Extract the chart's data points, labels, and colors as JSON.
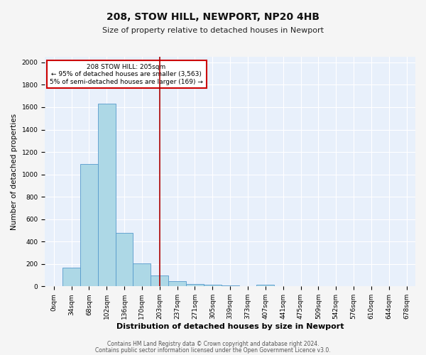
{
  "title_line1": "208, STOW HILL, NEWPORT, NP20 4HB",
  "title_line2": "Size of property relative to detached houses in Newport",
  "xlabel": "Distribution of detached houses by size in Newport",
  "ylabel": "Number of detached properties",
  "footnote1": "Contains HM Land Registry data © Crown copyright and database right 2024.",
  "footnote2": "Contains public sector information licensed under the Open Government Licence v3.0.",
  "bar_labels": [
    "0sqm",
    "34sqm",
    "68sqm",
    "102sqm",
    "136sqm",
    "170sqm",
    "203sqm",
    "237sqm",
    "271sqm",
    "305sqm",
    "339sqm",
    "373sqm",
    "407sqm",
    "441sqm",
    "475sqm",
    "509sqm",
    "542sqm",
    "576sqm",
    "610sqm",
    "644sqm",
    "678sqm"
  ],
  "bar_values": [
    0,
    170,
    1090,
    1630,
    480,
    205,
    100,
    45,
    20,
    13,
    8,
    5,
    17,
    0,
    0,
    0,
    0,
    0,
    0,
    0,
    0
  ],
  "bar_color": "#add8e6",
  "bar_edge_color": "#5599cc",
  "bg_color": "#e8f0fb",
  "grid_color": "#ffffff",
  "fig_bg_color": "#f5f5f5",
  "vline_x": 6.0,
  "vline_color": "#aa0000",
  "annotation_text": "208 STOW HILL: 205sqm\n← 95% of detached houses are smaller (3,563)\n5% of semi-detached houses are larger (169) →",
  "annotation_box_color": "#ffffff",
  "annotation_box_edge_color": "#cc0000",
  "ylim": [
    0,
    2050
  ],
  "yticks": [
    0,
    200,
    400,
    600,
    800,
    1000,
    1200,
    1400,
    1600,
    1800,
    2000
  ],
  "title1_fontsize": 10,
  "title2_fontsize": 8,
  "xlabel_fontsize": 8,
  "ylabel_fontsize": 7.5,
  "tick_fontsize": 6.5,
  "annot_fontsize": 6.5,
  "footnote_fontsize": 5.5
}
